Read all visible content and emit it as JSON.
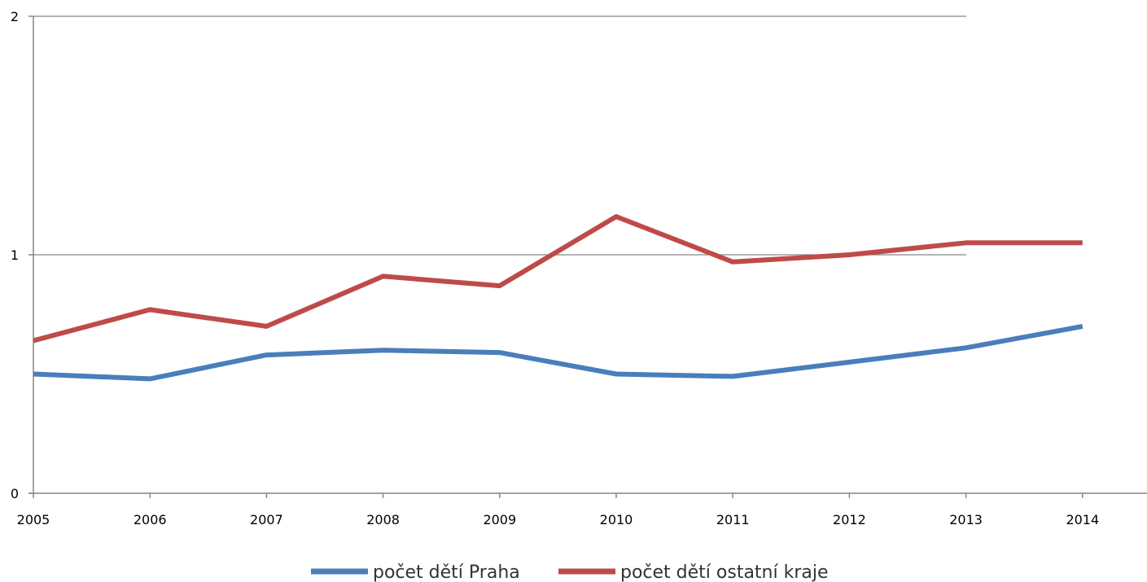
{
  "chart_data": {
    "type": "line",
    "title": "",
    "xlabel": "",
    "ylabel": "",
    "x": [
      "2005",
      "2006",
      "2007",
      "2008",
      "2009",
      "2010",
      "2011",
      "2012",
      "2013",
      "2014"
    ],
    "y_ticks": [
      "0",
      "1",
      "2"
    ],
    "ylim": [
      0,
      2
    ],
    "grid": true,
    "legend_position": "bottom",
    "series": [
      {
        "name": "počet dětí Praha",
        "color": "#4a7ebb",
        "values": [
          0.5,
          0.48,
          0.58,
          0.6,
          0.59,
          0.5,
          0.49,
          0.55,
          0.61,
          0.7
        ]
      },
      {
        "name": "počet dětí ostatní kraje",
        "color": "#be4b48",
        "values": [
          0.64,
          0.77,
          0.7,
          0.91,
          0.87,
          1.16,
          0.97,
          1.0,
          1.05,
          1.05
        ]
      }
    ]
  }
}
